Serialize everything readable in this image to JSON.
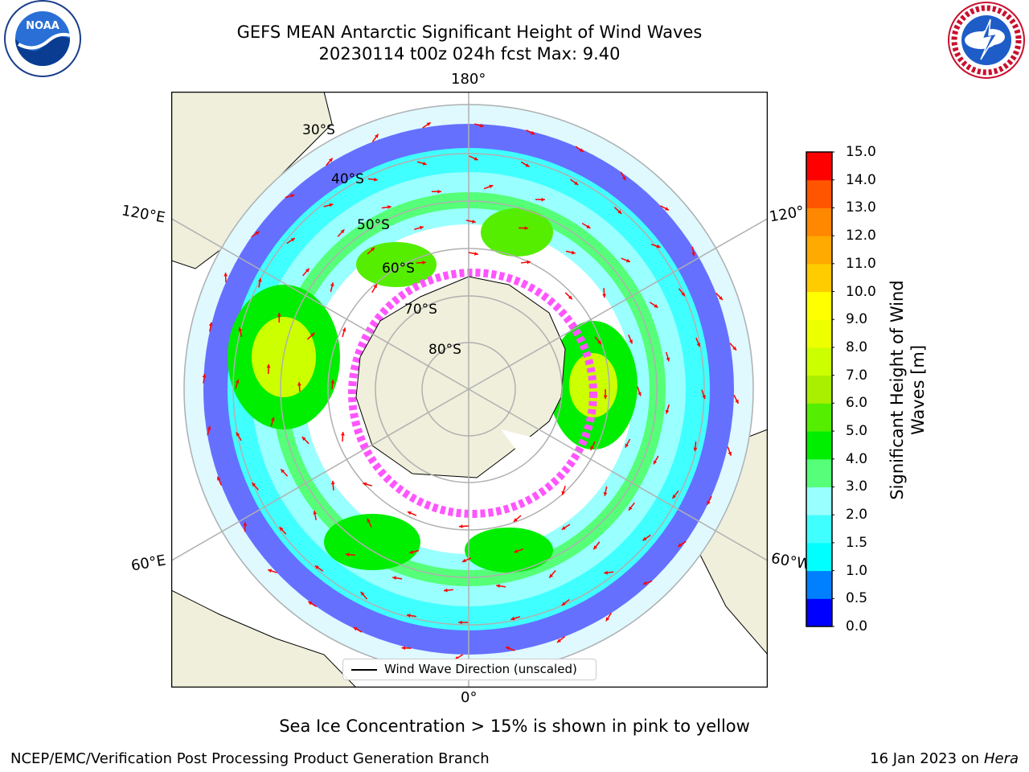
{
  "title": {
    "line1": "GEFS MEAN Antarctic Significant Height of Wind Waves",
    "line2": "20230114 t00z 024h fcst   Max: 9.40"
  },
  "logos": {
    "left": "NOAA",
    "right": "NATIONAL WEATHER SERVICE"
  },
  "map": {
    "longitude_labels": {
      "top": "180°",
      "left": "120°E",
      "right": "120°",
      "bottom_left": "60°E",
      "bottom_right": "60°W",
      "bottom": "0°"
    },
    "latitude_labels": [
      "30°S",
      "40°S",
      "50°S",
      "60°S",
      "70°S",
      "80°S"
    ],
    "legend_label": "Wind Wave Direction (unscaled)",
    "colors": {
      "land": "#efefdb",
      "ocean": "#ffffff",
      "grid": "#b0b0b0",
      "arrow": "#ff0000",
      "sea_ice": "#ff55ff"
    }
  },
  "colorbar": {
    "title_line1": "Significant Height of Wind",
    "title_line2": "Waves [m]",
    "ticks": [
      "0.0",
      "0.5",
      "1.0",
      "1.5",
      "2.0",
      "3.0",
      "4.0",
      "5.0",
      "6.0",
      "7.0",
      "8.0",
      "9.0",
      "10.0",
      "11.0",
      "12.0",
      "13.0",
      "14.0",
      "15.0"
    ],
    "colors": [
      "#0000ff",
      "#0080ff",
      "#00ffff",
      "#40ffff",
      "#99ffff",
      "#55ff77",
      "#00ee00",
      "#55ee00",
      "#aaee00",
      "#ccff00",
      "#eeff00",
      "#ffff00",
      "#ffcc00",
      "#ffaa00",
      "#ff8800",
      "#ff5500",
      "#ff0000"
    ]
  },
  "footnote": "Sea Ice Concentration > 15% is shown in pink to yellow",
  "credit_left": "NCEP/EMC/Verification Post Processing Product Generation Branch",
  "credit_right_date": "16 Jan 2023 on",
  "credit_right_machine": "Hera"
}
